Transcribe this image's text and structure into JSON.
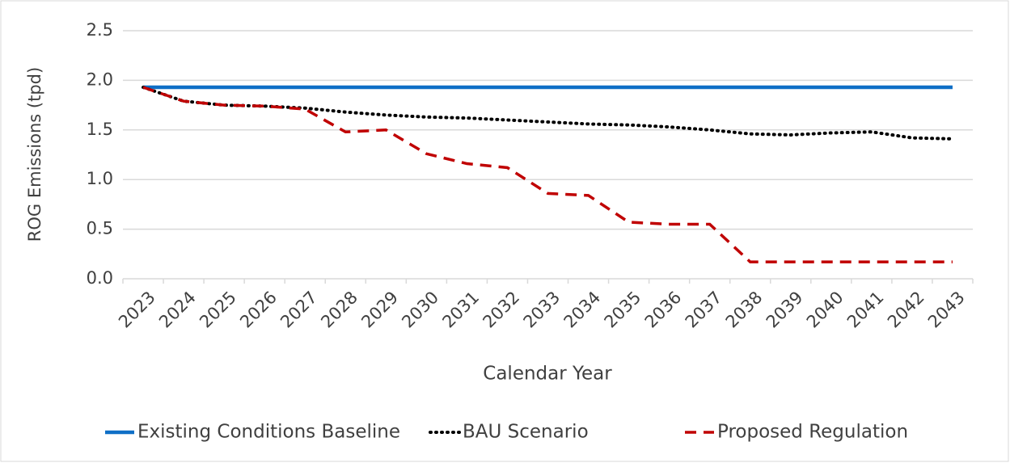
{
  "chart_data": {
    "type": "line",
    "y_label": "ROG Emissions (tpd)",
    "x_label": "Calendar Year",
    "categories": [
      "2023",
      "2024",
      "2025",
      "2026",
      "2027",
      "2028",
      "2029",
      "2030",
      "2031",
      "2032",
      "2033",
      "2034",
      "2035",
      "2036",
      "2037",
      "2038",
      "2039",
      "2040",
      "2041",
      "2042",
      "2043"
    ],
    "series": [
      {
        "name": "Existing Conditions Baseline",
        "color": "#0f6fc6",
        "dash": "solid",
        "values": [
          1.93,
          1.93,
          1.93,
          1.93,
          1.93,
          1.93,
          1.93,
          1.93,
          1.93,
          1.93,
          1.93,
          1.93,
          1.93,
          1.93,
          1.93,
          1.93,
          1.93,
          1.93,
          1.93,
          1.93,
          1.93
        ]
      },
      {
        "name": "BAU Scenario",
        "color": "#000000",
        "dash": "dotted",
        "values": [
          1.93,
          1.79,
          1.75,
          1.74,
          1.72,
          1.68,
          1.65,
          1.63,
          1.62,
          1.6,
          1.58,
          1.56,
          1.55,
          1.53,
          1.5,
          1.46,
          1.45,
          1.47,
          1.48,
          1.42,
          1.41
        ]
      },
      {
        "name": "Proposed Regulation",
        "color": "#c00000",
        "dash": "dashed",
        "values": [
          1.93,
          1.79,
          1.75,
          1.74,
          1.71,
          1.48,
          1.5,
          1.26,
          1.16,
          1.12,
          0.86,
          0.84,
          0.57,
          0.55,
          0.55,
          0.17,
          0.17,
          0.17,
          0.17,
          0.17,
          0.17
        ]
      }
    ],
    "ylim": [
      0,
      2.5
    ],
    "yticks": [
      {
        "value": 0,
        "label": "0.0"
      },
      0.5,
      {
        "value": 1,
        "label": "1.0"
      },
      1.5,
      {
        "value": 2,
        "label": "2.0"
      },
      2.5
    ],
    "grid": true,
    "legend": "bottom"
  }
}
